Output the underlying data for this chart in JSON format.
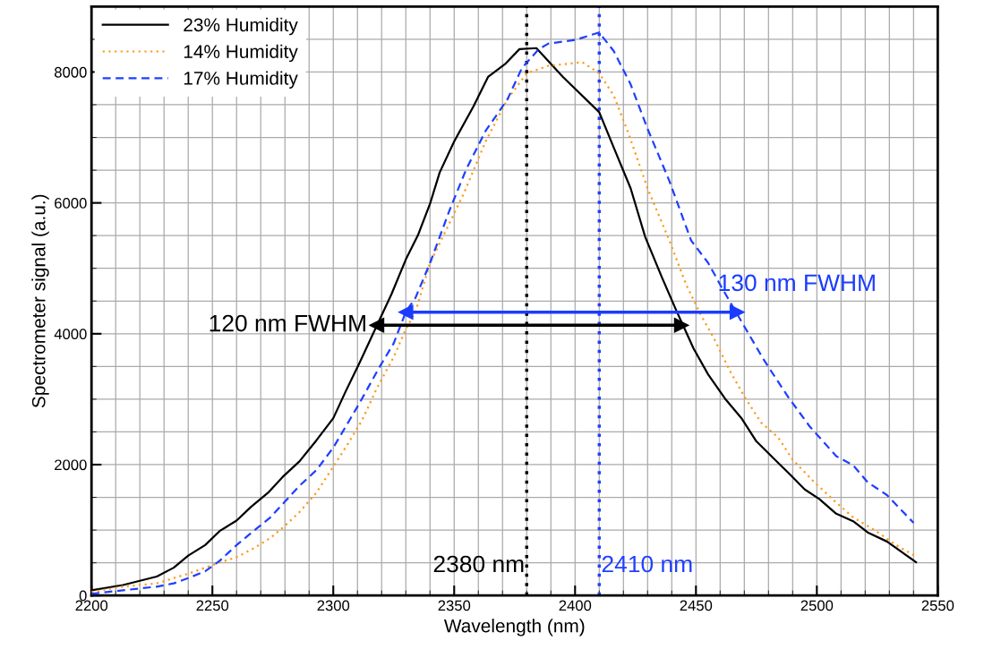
{
  "chart_data": {
    "type": "line",
    "xlabel": "Wavelength (nm)",
    "ylabel": "Spectrometer signal (a.u.)",
    "xlim": [
      2200,
      2550
    ],
    "xticks": [
      2200,
      2250,
      2300,
      2350,
      2400,
      2450,
      2500,
      2550
    ],
    "ylim": [
      0,
      9000
    ],
    "yticks": [
      0,
      2000,
      4000,
      6000,
      8000
    ],
    "grid": true,
    "legend": "top left",
    "series": [
      {
        "name": "23% Humidity",
        "color": "#000000",
        "line_style": "solid",
        "x": [
          2200,
          2213,
          2227,
          2234,
          2240,
          2247,
          2253,
          2260,
          2266,
          2273,
          2279,
          2286,
          2293,
          2300,
          2305,
          2311,
          2318,
          2324,
          2330,
          2335,
          2340,
          2344,
          2350,
          2358,
          2364,
          2371,
          2377,
          2384,
          2395,
          2410,
          2416,
          2423,
          2429,
          2436,
          2442,
          2449,
          2455,
          2462,
          2469,
          2475,
          2482,
          2489,
          2495,
          2501,
          2508,
          2515,
          2521,
          2529,
          2541
        ],
        "values": [
          80,
          160,
          290,
          425,
          610,
          770,
          985,
          1145,
          1355,
          1570,
          1810,
          2050,
          2370,
          2710,
          3110,
          3565,
          4125,
          4600,
          5135,
          5505,
          5985,
          6465,
          6940,
          7475,
          7925,
          8120,
          8350,
          8365,
          7925,
          7385,
          6845,
          6220,
          5480,
          4855,
          4345,
          3775,
          3380,
          3010,
          2700,
          2355,
          2100,
          1845,
          1620,
          1475,
          1250,
          1135,
          965,
          825,
          510
        ]
      },
      {
        "name": "14% Humidity",
        "color": "#ff9a1a",
        "line_style": "dotted",
        "x": [
          2200,
          2213,
          2227,
          2234,
          2241,
          2247,
          2253,
          2260,
          2267,
          2274,
          2280,
          2286,
          2293,
          2300,
          2306,
          2312,
          2318,
          2325,
          2330,
          2334,
          2340,
          2347,
          2354,
          2363,
          2372,
          2380,
          2389,
          2403,
          2410,
          2416,
          2422,
          2430,
          2439,
          2446,
          2452,
          2458,
          2464,
          2470,
          2477,
          2484,
          2490,
          2499,
          2508,
          2515,
          2524,
          2533,
          2541
        ],
        "values": [
          55,
          135,
          185,
          265,
          345,
          425,
          505,
          585,
          720,
          880,
          1065,
          1275,
          1570,
          1970,
          2315,
          2685,
          3165,
          3645,
          4070,
          4335,
          5080,
          5610,
          6145,
          6940,
          7580,
          7980,
          8095,
          8150,
          7980,
          7640,
          7070,
          6220,
          5425,
          4745,
          4290,
          3890,
          3435,
          3040,
          2640,
          2415,
          2075,
          1730,
          1420,
          1195,
          995,
          765,
          595
        ]
      },
      {
        "name": "17% Humidity",
        "color": "#1f3fff",
        "line_style": "dashed",
        "x": [
          2200,
          2213,
          2227,
          2234,
          2240,
          2247,
          2253,
          2260,
          2267,
          2274,
          2280,
          2286,
          2293,
          2300,
          2306,
          2311,
          2319,
          2325,
          2330,
          2334,
          2340,
          2348,
          2355,
          2363,
          2372,
          2378,
          2385,
          2389,
          2400,
          2410,
          2416,
          2423,
          2430,
          2439,
          2448,
          2455,
          2461,
          2469,
          2478,
          2488,
          2497,
          2508,
          2515,
          2521,
          2529,
          2540
        ],
        "values": [
          25,
          80,
          135,
          185,
          265,
          370,
          530,
          770,
          985,
          1195,
          1435,
          1675,
          1915,
          2260,
          2635,
          2950,
          3485,
          3855,
          4335,
          4550,
          5080,
          5880,
          6515,
          7100,
          7580,
          8060,
          8350,
          8435,
          8490,
          8605,
          8320,
          7810,
          7130,
          6335,
          5425,
          5085,
          4685,
          4175,
          3605,
          3040,
          2585,
          2130,
          1990,
          1730,
          1535,
          1110
        ]
      },
      {
        "color": "#000000",
        "line_style": "solid",
        "marker": "triangle",
        "x": [
          2318,
          2444
        ],
        "values": [
          4130,
          4130
        ]
      },
      {
        "color": "#1a3cff",
        "line_style": "solid",
        "marker": "triangle",
        "x": [
          2330,
          2467
        ],
        "values": [
          4330,
          4330
        ]
      }
    ],
    "ref_lines": [
      {
        "axis": "x",
        "value": 2380,
        "label": "2380 nm",
        "color": "#000000",
        "line_style": "dotted"
      },
      {
        "axis": "x",
        "value": 2410,
        "label": "2410 nm",
        "color": "#1f3fff",
        "line_style": "dotted"
      }
    ],
    "annotations": [
      {
        "text": "120 nm FWHM",
        "x": 2318,
        "y": 4130
      },
      {
        "text": "130 nm FWHM",
        "x": 2467,
        "y": 4330
      }
    ]
  }
}
